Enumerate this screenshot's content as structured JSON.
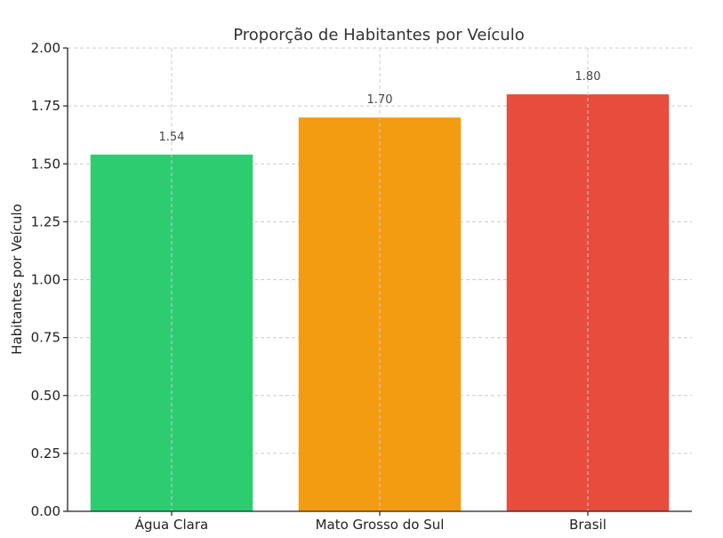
{
  "chart_data": {
    "type": "bar",
    "title": "Proporção de Habitantes por Veículo",
    "xlabel": "",
    "ylabel": "Habitantes por Veículo",
    "categories": [
      "Água Clara",
      "Mato Grosso do Sul",
      "Brasil"
    ],
    "values": [
      1.54,
      1.7,
      1.8
    ],
    "value_labels": [
      "1.54",
      "1.70",
      "1.80"
    ],
    "colors": [
      "#2ecc71",
      "#f39c12",
      "#e74c3c"
    ],
    "ylim": [
      0,
      2.0
    ],
    "yticks": [
      0,
      0.25,
      0.5,
      0.75,
      1.0,
      1.25,
      1.5,
      1.75,
      2.0
    ],
    "ytick_labels": [
      "0.00",
      "0.25",
      "0.50",
      "0.75",
      "1.00",
      "1.25",
      "1.50",
      "1.75",
      "2.00"
    ],
    "grid": true,
    "grid_style": "dashed"
  }
}
